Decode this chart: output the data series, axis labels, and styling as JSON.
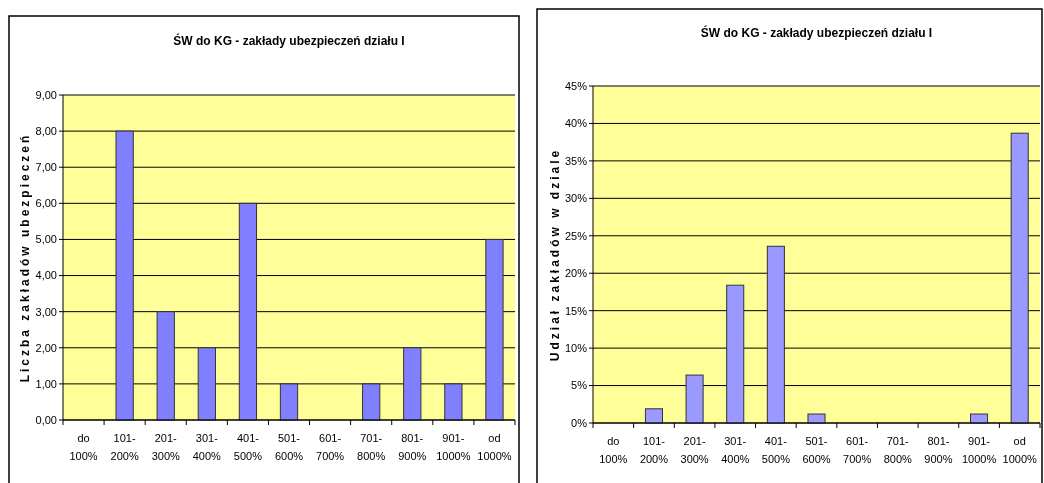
{
  "chart_data": [
    {
      "type": "bar",
      "title": "ŚW do KG - zakłady ubezpieczeń działu I",
      "ylabel": "Liczba zakładów ubezpieczeń",
      "categories": [
        "do 100%",
        "101-200%",
        "201-300%",
        "301-400%",
        "401-500%",
        "501-600%",
        "601-700%",
        "701-800%",
        "801-900%",
        "901-1000%",
        "od 1000%"
      ],
      "values": [
        0,
        8,
        3,
        2,
        6,
        1,
        0,
        1,
        2,
        1,
        5
      ],
      "color": "#8080ff",
      "ylim": [
        0,
        9
      ],
      "yticks": [
        {
          "value": 0,
          "label": "0,00"
        },
        {
          "value": 1,
          "label": "1,00"
        },
        {
          "value": 2,
          "label": "2,00"
        },
        {
          "value": 3,
          "label": "3,00"
        },
        {
          "value": 4,
          "label": "4,00"
        },
        {
          "value": 5,
          "label": "5,00"
        },
        {
          "value": 6,
          "label": "6,00"
        },
        {
          "value": 7,
          "label": "7,00"
        },
        {
          "value": 8,
          "label": "8,00"
        },
        {
          "value": 9,
          "label": "9,00"
        }
      ],
      "grid": "y"
    },
    {
      "type": "bar",
      "title": "ŚW do KG - zakłady ubezpieczeń działu I",
      "ylabel": "Udział zakładów w dziale",
      "categories": [
        "do 100%",
        "101-200%",
        "201-300%",
        "301-400%",
        "401-500%",
        "501-600%",
        "601-700%",
        "701-800%",
        "801-900%",
        "901-1000%",
        "od 1000%"
      ],
      "values": [
        0,
        1.9,
        6.4,
        18.4,
        23.6,
        1.2,
        0,
        0,
        0,
        1.2,
        38.7
      ],
      "color": "#9999ff",
      "ylim": [
        0,
        45
      ],
      "yticks": [
        {
          "value": 0,
          "label": "0%"
        },
        {
          "value": 5,
          "label": "5%"
        },
        {
          "value": 10,
          "label": "10%"
        },
        {
          "value": 15,
          "label": "15%"
        },
        {
          "value": 20,
          "label": "20%"
        },
        {
          "value": 25,
          "label": "25%"
        },
        {
          "value": 30,
          "label": "30%"
        },
        {
          "value": 35,
          "label": "35%"
        },
        {
          "value": 40,
          "label": "40%"
        },
        {
          "value": 45,
          "label": "45%"
        }
      ],
      "grid": "y"
    }
  ]
}
